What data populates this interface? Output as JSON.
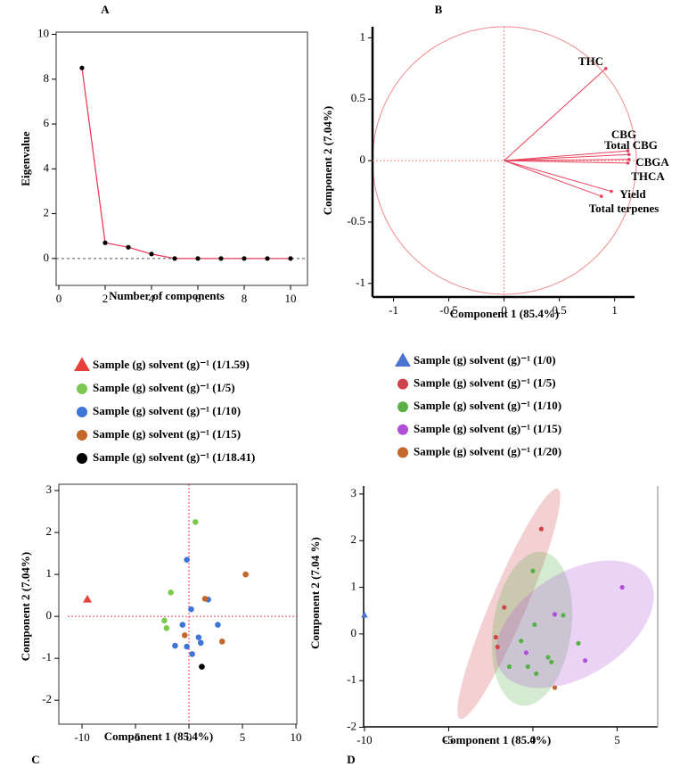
{
  "chart_data": [
    {
      "type": "line",
      "title": "A",
      "xlabel": "Number of components",
      "ylabel": "Eigenvalue",
      "x": [
        1,
        2,
        3,
        4,
        5,
        6,
        7,
        8,
        9,
        10
      ],
      "values": [
        8.5,
        0.7,
        0.5,
        0.2,
        0.0,
        0.0,
        0.0,
        0.0,
        0.0,
        0.0
      ],
      "color": "#e8405a",
      "marker_color": "#000000",
      "xlim": [
        -0.115,
        10.73
      ],
      "ylim": [
        -1.2,
        10.1
      ],
      "xticks": [
        0,
        2,
        4,
        6,
        8,
        10
      ],
      "yticks": [
        0,
        2,
        4,
        6,
        8,
        10
      ]
    },
    {
      "type": "loadings",
      "title": "B",
      "xlabel": "Component 1 (85.4%)",
      "ylabel": "Component 2 (7.04%)",
      "color": "#e8405a",
      "vectors": [
        {
          "label": "THC",
          "x": 0.92,
          "y": 0.75
        },
        {
          "label": "CBG",
          "x": 1.12,
          "y": 0.08
        },
        {
          "label": "Total CBG",
          "x": 1.13,
          "y": 0.05
        },
        {
          "label": "CBGA",
          "x": 1.13,
          "y": 0.01
        },
        {
          "label": "THCA",
          "x": 1.12,
          "y": -0.02
        },
        {
          "label": "Yield",
          "x": 0.97,
          "y": -0.25
        },
        {
          "label": "Total terpenes",
          "x": 0.88,
          "y": -0.29
        }
      ],
      "xlim": [
        -1.19,
        1.18
      ],
      "ylim": [
        -1.11,
        1.09
      ],
      "xticks": [
        -1,
        -0.5,
        0,
        0.5,
        1
      ],
      "yticks": [
        -1,
        -0.5,
        0,
        0.5,
        1
      ]
    },
    {
      "type": "scatter",
      "title": "C",
      "xlabel": "Component 1 (85.4%)",
      "ylabel": "Component 2 (7.04%)",
      "series": [
        {
          "name": "Sample (g) solvent (g)⁻¹ (1/1.59)",
          "color": "#e8413a",
          "marker": "triangle",
          "x": [
            -9.5
          ],
          "y": [
            0.4
          ]
        },
        {
          "name": "Sample (g) solvent (g)⁻¹ (1/5)",
          "color": "#7dc94f",
          "marker": "circle",
          "x": [
            0.6,
            -1.7,
            -2.3,
            -2.1
          ],
          "y": [
            2.25,
            0.57,
            -0.1,
            -0.28
          ]
        },
        {
          "name": "Sample (g) solvent (g)⁻¹ (1/10)",
          "color": "#3d76d6",
          "marker": "circle",
          "x": [
            -0.2,
            0.2,
            1.8,
            -1.3,
            -0.6,
            -0.2,
            0.9,
            1.1,
            0.3,
            2.7
          ],
          "y": [
            1.35,
            0.17,
            0.4,
            -0.7,
            -0.2,
            -0.72,
            -0.5,
            -0.63,
            -0.9,
            -0.2
          ]
        },
        {
          "name": "Sample (g) solvent (g)⁻¹ (1/15)",
          "color": "#c4672a",
          "marker": "circle",
          "x": [
            5.3,
            1.5,
            -0.4,
            3.1
          ],
          "y": [
            1.0,
            0.42,
            -0.45,
            -0.6
          ]
        },
        {
          "name": "Sample (g) solvent (g)⁻¹ (1/18.41)",
          "color": "#000000",
          "marker": "circle",
          "x": [
            1.2
          ],
          "y": [
            -1.2
          ]
        }
      ],
      "xlim": [
        -12.17,
        10.08
      ],
      "ylim": [
        -2.57,
        3.15
      ],
      "xticks": [
        -10,
        -5,
        0,
        5,
        10
      ],
      "yticks": [
        -2,
        -1,
        0,
        1,
        2,
        3
      ]
    },
    {
      "type": "scatter",
      "title": "D",
      "xlabel": "Component 1 (85.4%)",
      "ylabel": "Component 2 (7.04 %)",
      "series": [
        {
          "name": "Sample (g) solvent (g)⁻¹ (1/0)",
          "color": "#4a74d0",
          "marker": "triangle",
          "x": [
            -10
          ],
          "y": [
            0.4
          ]
        },
        {
          "name": "Sample (g) solvent (g)⁻¹ (1/5)",
          "color": "#d0434a",
          "marker": "circle",
          "x": [
            0.5,
            -1.7,
            -2.2,
            -2.1
          ],
          "y": [
            2.25,
            0.57,
            -0.07,
            -0.28
          ]
        },
        {
          "name": "Sample (g) solvent (g)⁻¹ (1/10)",
          "color": "#58b047",
          "marker": "circle",
          "x": [
            0.0,
            0.1,
            1.8,
            -1.4,
            -0.7,
            -0.3,
            0.9,
            1.1,
            0.2,
            2.7
          ],
          "y": [
            1.35,
            0.2,
            0.4,
            -0.7,
            -0.15,
            -0.7,
            -0.5,
            -0.6,
            -0.85,
            -0.2
          ]
        },
        {
          "name": "Sample (g) solvent (g)⁻¹ (1/15)",
          "color": "#b04fd8",
          "marker": "circle",
          "x": [
            5.3,
            1.3,
            -0.4,
            3.1
          ],
          "y": [
            1.0,
            0.42,
            -0.4,
            -0.57
          ]
        },
        {
          "name": "Sample (g) solvent (g)⁻¹ (1/20)",
          "color": "#c4672a",
          "marker": "circle",
          "x": [
            1.3
          ],
          "y": [
            -1.15
          ]
        }
      ],
      "xlim": [
        -10.05,
        7.41
      ],
      "ylim": [
        -1.99,
        3.17
      ],
      "xticks": [
        -10,
        -5,
        0,
        5
      ],
      "yticks": [
        -2,
        -1,
        0,
        1,
        2,
        3
      ]
    }
  ]
}
